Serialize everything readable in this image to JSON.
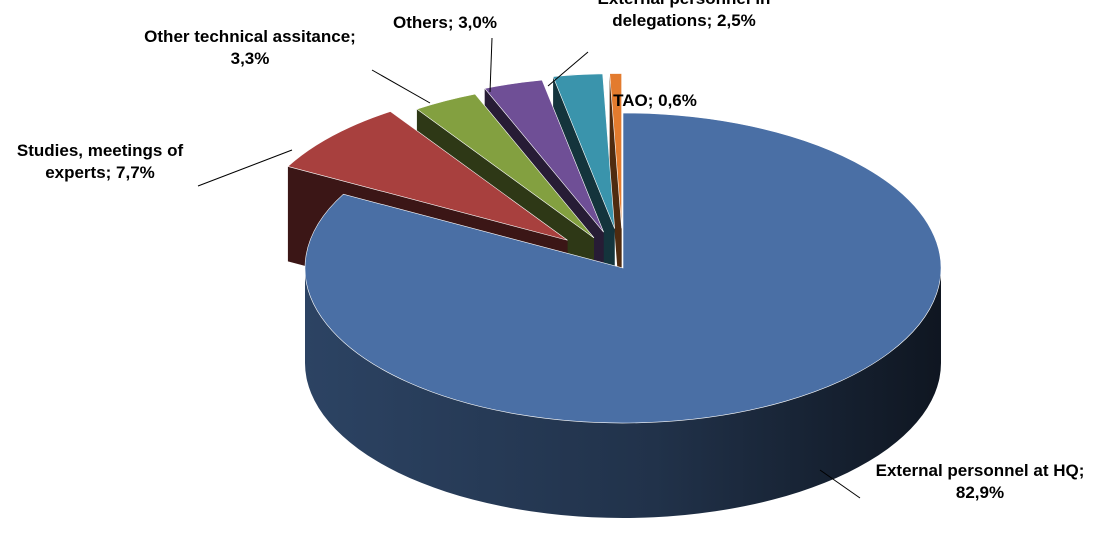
{
  "chart_data": {
    "type": "pie",
    "title": "",
    "style": "3d-exploded",
    "categories": [
      "External personnel at HQ",
      "Studies, meetings of experts",
      "Other technical assitance",
      "Others",
      "External personnel in delegations",
      "TAO"
    ],
    "values": [
      82.9,
      7.7,
      3.3,
      3.0,
      2.5,
      0.6
    ],
    "value_labels": [
      "82,9%",
      "7,7%",
      "3,3%",
      "3,0%",
      "2,5%",
      "0,6%"
    ],
    "label_text": [
      [
        "External personnel at HQ;",
        "82,9%"
      ],
      [
        "Studies, meetings of",
        "experts; 7,7%"
      ],
      [
        "Other technical assitance;",
        "3,3%"
      ],
      [
        "Others; 3,0%"
      ],
      [
        "External personnel in",
        "delegations; 2,5%"
      ],
      [
        "TAO; 0,6%"
      ]
    ],
    "colors": [
      "#4a6fa5",
      "#a8403e",
      "#83a040",
      "#6f4f96",
      "#3a94ac",
      "#e37b2e"
    ],
    "legend": "none"
  }
}
